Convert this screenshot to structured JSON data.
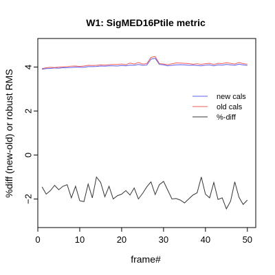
{
  "chart_data": {
    "type": "line",
    "title": "W1: SigMED16Ptile metric",
    "xlabel": "frame#",
    "ylabel": "%diff (new-old) or robust RMS",
    "xlim": [
      0,
      52
    ],
    "ylim": [
      -3.3,
      5.3
    ],
    "x_ticks": [
      0,
      10,
      20,
      30,
      40,
      50
    ],
    "y_ticks": [
      -2,
      0,
      2,
      4
    ],
    "grid": false,
    "legend_position": "right",
    "x": [
      1,
      2,
      3,
      4,
      5,
      6,
      7,
      8,
      9,
      10,
      11,
      12,
      13,
      14,
      15,
      16,
      17,
      18,
      19,
      20,
      21,
      22,
      23,
      24,
      25,
      26,
      27,
      28,
      29,
      30,
      31,
      32,
      33,
      34,
      35,
      36,
      37,
      38,
      39,
      40,
      41,
      42,
      43,
      44,
      45,
      46,
      47,
      48,
      49,
      50
    ],
    "series": [
      {
        "name": "new cals",
        "color": "#5b5bf0",
        "values": [
          3.9,
          3.93,
          3.94,
          3.96,
          3.95,
          3.97,
          3.97,
          3.98,
          4.0,
          3.99,
          3.99,
          4.02,
          4.02,
          4.03,
          4.05,
          4.04,
          4.06,
          4.06,
          4.05,
          4.07,
          4.06,
          4.09,
          4.08,
          4.12,
          4.08,
          4.09,
          4.36,
          4.4,
          4.12,
          4.1,
          4.06,
          4.08,
          4.1,
          4.11,
          4.1,
          4.08,
          4.09,
          4.07,
          4.06,
          4.09,
          4.1,
          4.06,
          4.1,
          4.09,
          4.12,
          4.1,
          4.08,
          4.13,
          4.1,
          4.07
        ]
      },
      {
        "name": "old cals",
        "color": "#ef5a5a",
        "values": [
          3.93,
          3.97,
          3.99,
          3.98,
          4.0,
          4.01,
          4.02,
          4.04,
          4.05,
          4.03,
          4.05,
          4.08,
          4.07,
          4.08,
          4.1,
          4.09,
          4.11,
          4.12,
          4.12,
          4.14,
          4.11,
          4.18,
          4.14,
          4.21,
          4.14,
          4.16,
          4.44,
          4.48,
          4.16,
          4.14,
          4.11,
          4.15,
          4.19,
          4.18,
          4.17,
          4.16,
          4.13,
          4.15,
          4.12,
          4.16,
          4.17,
          4.12,
          4.17,
          4.16,
          4.2,
          4.17,
          4.14,
          4.21,
          4.16,
          4.13
        ]
      },
      {
        "name": "%-diff",
        "color": "#333333",
        "values": [
          -1.45,
          -1.78,
          -1.62,
          -1.38,
          -1.58,
          -1.42,
          -1.35,
          -1.95,
          -1.42,
          -2.08,
          -2.12,
          -1.32,
          -1.95,
          -1.0,
          -1.25,
          -1.9,
          -1.42,
          -2.0,
          -1.85,
          -1.78,
          -1.62,
          -1.82,
          -1.5,
          -2.0,
          -1.75,
          -1.45,
          -1.22,
          -1.8,
          -1.35,
          -1.2,
          -1.6,
          -2.0,
          -1.98,
          -2.05,
          -2.18,
          -2.0,
          -1.82,
          -1.72,
          -1.0,
          -1.78,
          -1.95,
          -1.25,
          -2.02,
          -1.95,
          -2.45,
          -2.1,
          -1.22,
          -1.92,
          -2.25,
          -2.05
        ]
      }
    ]
  }
}
